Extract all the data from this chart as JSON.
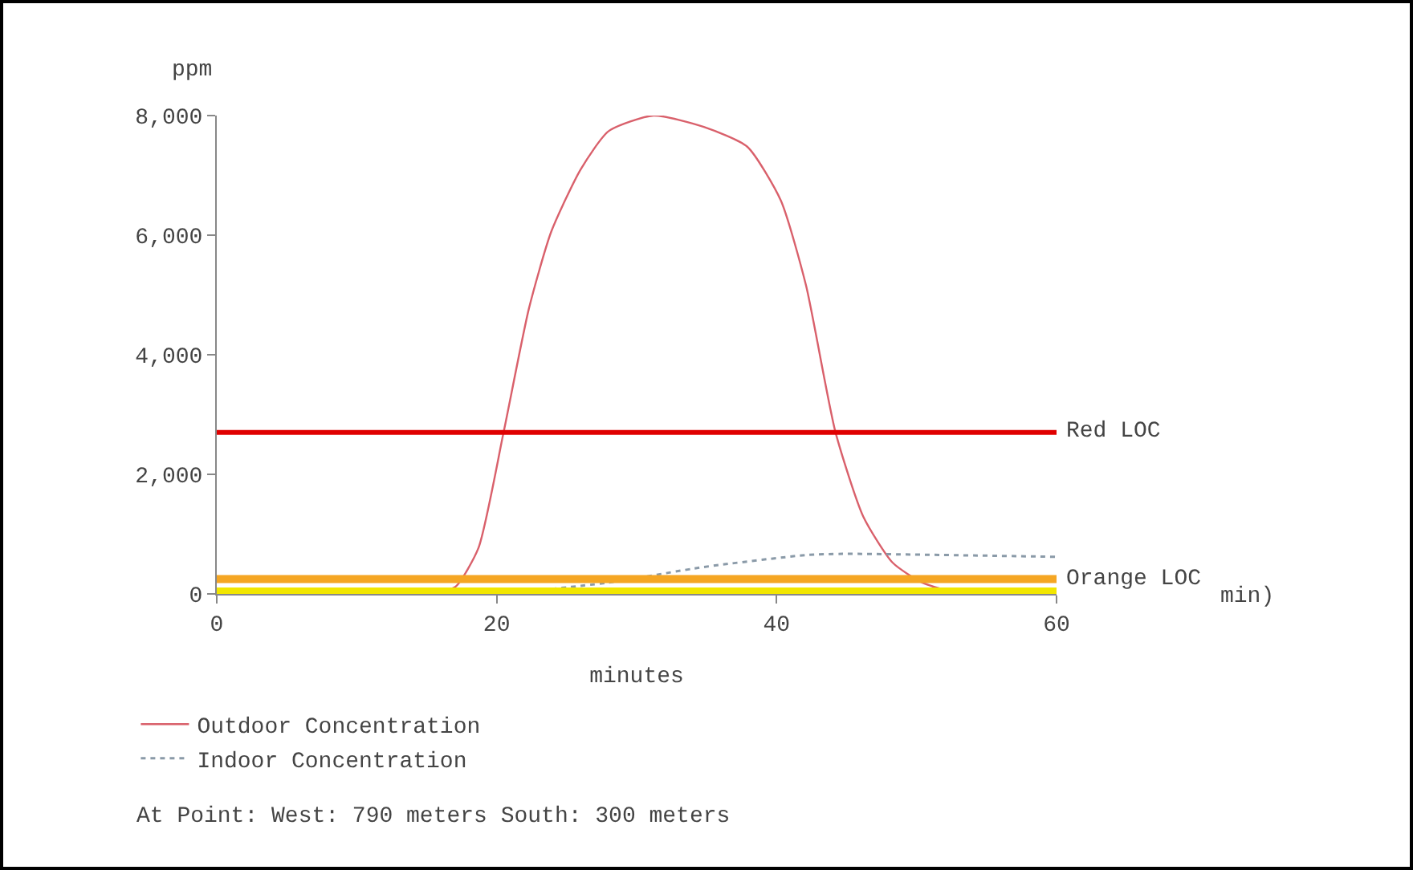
{
  "chart_data": {
    "type": "line",
    "xlabel": "minutes",
    "ylabel": "ppm",
    "xlim": [
      0,
      60
    ],
    "xticks": [
      0,
      20,
      40,
      60
    ],
    "ylim": [
      0,
      8000
    ],
    "yticks": [
      0,
      {
        "value": 2000,
        "label": "2,000"
      },
      {
        "value": 4000,
        "label": "4,000"
      },
      {
        "value": 6000,
        "label": "6,000"
      },
      {
        "value": 8000,
        "label": "8,000"
      }
    ],
    "grid": false,
    "legend": "bottom",
    "marker": "none",
    "series": [
      {
        "name": "Outdoor Concentration",
        "color": "#d9606b",
        "line_style": "solid",
        "x": [
          15.6,
          17.1,
          18.7,
          20.5,
          22.3,
          23.9,
          26,
          28,
          31.2,
          34.8,
          37.9,
          40.3,
          42.1,
          44.2,
          46.2,
          48.3,
          50.4,
          53
        ],
        "values": [
          0,
          130,
          770,
          2710,
          4770,
          6060,
          7100,
          7740,
          8000,
          7810,
          7480,
          6580,
          5160,
          2710,
          1290,
          520,
          190,
          0
        ]
      },
      {
        "name": "Indoor Concentration",
        "color": "#8a9aa8",
        "line_style": "dotted",
        "x": [
          20.5,
          28,
          34.8,
          42.1,
          44.7,
          60
        ],
        "values": [
          0,
          190,
          450,
          650,
          670,
          620
        ]
      }
    ],
    "ref_lines": [
      {
        "axis": "y",
        "value": 2700,
        "label": "Red LOC",
        "color": "#e00000"
      },
      {
        "axis": "y",
        "value": 250,
        "label": "Orange LOC",
        "color": "#f5a623"
      },
      {
        "axis": "y",
        "value": 40,
        "color": "#f2e600"
      }
    ],
    "annotations": [
      "min)",
      "At Point: West: 790 meters South: 300 meters"
    ]
  }
}
